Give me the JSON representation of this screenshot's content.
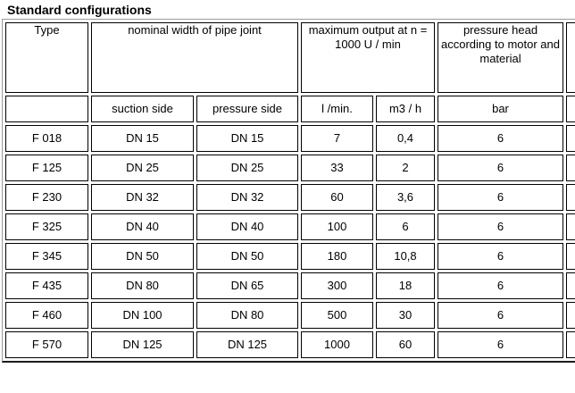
{
  "page": {
    "title": "Standard configurations"
  },
  "table": {
    "header_row1": {
      "type": "Type",
      "nominal_width": "nominal width of pipe joint",
      "max_output": "maximum output at n = 1000 U / min",
      "pressure_head": "pressure head according to motor and material",
      "extra": ""
    },
    "header_row2": [
      "",
      "suction side",
      "pressure side",
      "l /min.",
      "m3 / h",
      "bar",
      ""
    ],
    "rows": [
      [
        "F 018",
        "DN 15",
        "DN 15",
        "7",
        "0,4",
        "6",
        ""
      ],
      [
        "F 125",
        "DN 25",
        "DN 25",
        "33",
        "2",
        "6",
        ""
      ],
      [
        "F 230",
        "DN 32",
        "DN 32",
        "60",
        "3,6",
        "6",
        ""
      ],
      [
        "F 325",
        "DN 40",
        "DN 40",
        "100",
        "6",
        "6",
        ""
      ],
      [
        "F 345",
        "DN 50",
        "DN 50",
        "180",
        "10,8",
        "6",
        ""
      ],
      [
        "F 435",
        "DN 80",
        "DN 65",
        "300",
        "18",
        "6",
        ""
      ],
      [
        "F 460",
        "DN 100",
        "DN 80",
        "500",
        "30",
        "6",
        ""
      ],
      [
        "F 570",
        "DN 125",
        "DN 125",
        "1000",
        "60",
        "6",
        ""
      ]
    ],
    "colors": {
      "cell_border": "#000000",
      "outer_border": "#9a9a9a",
      "outer_border_bottom": "#1c1c1c",
      "text": "#000000",
      "background": "#ffffff"
    }
  }
}
